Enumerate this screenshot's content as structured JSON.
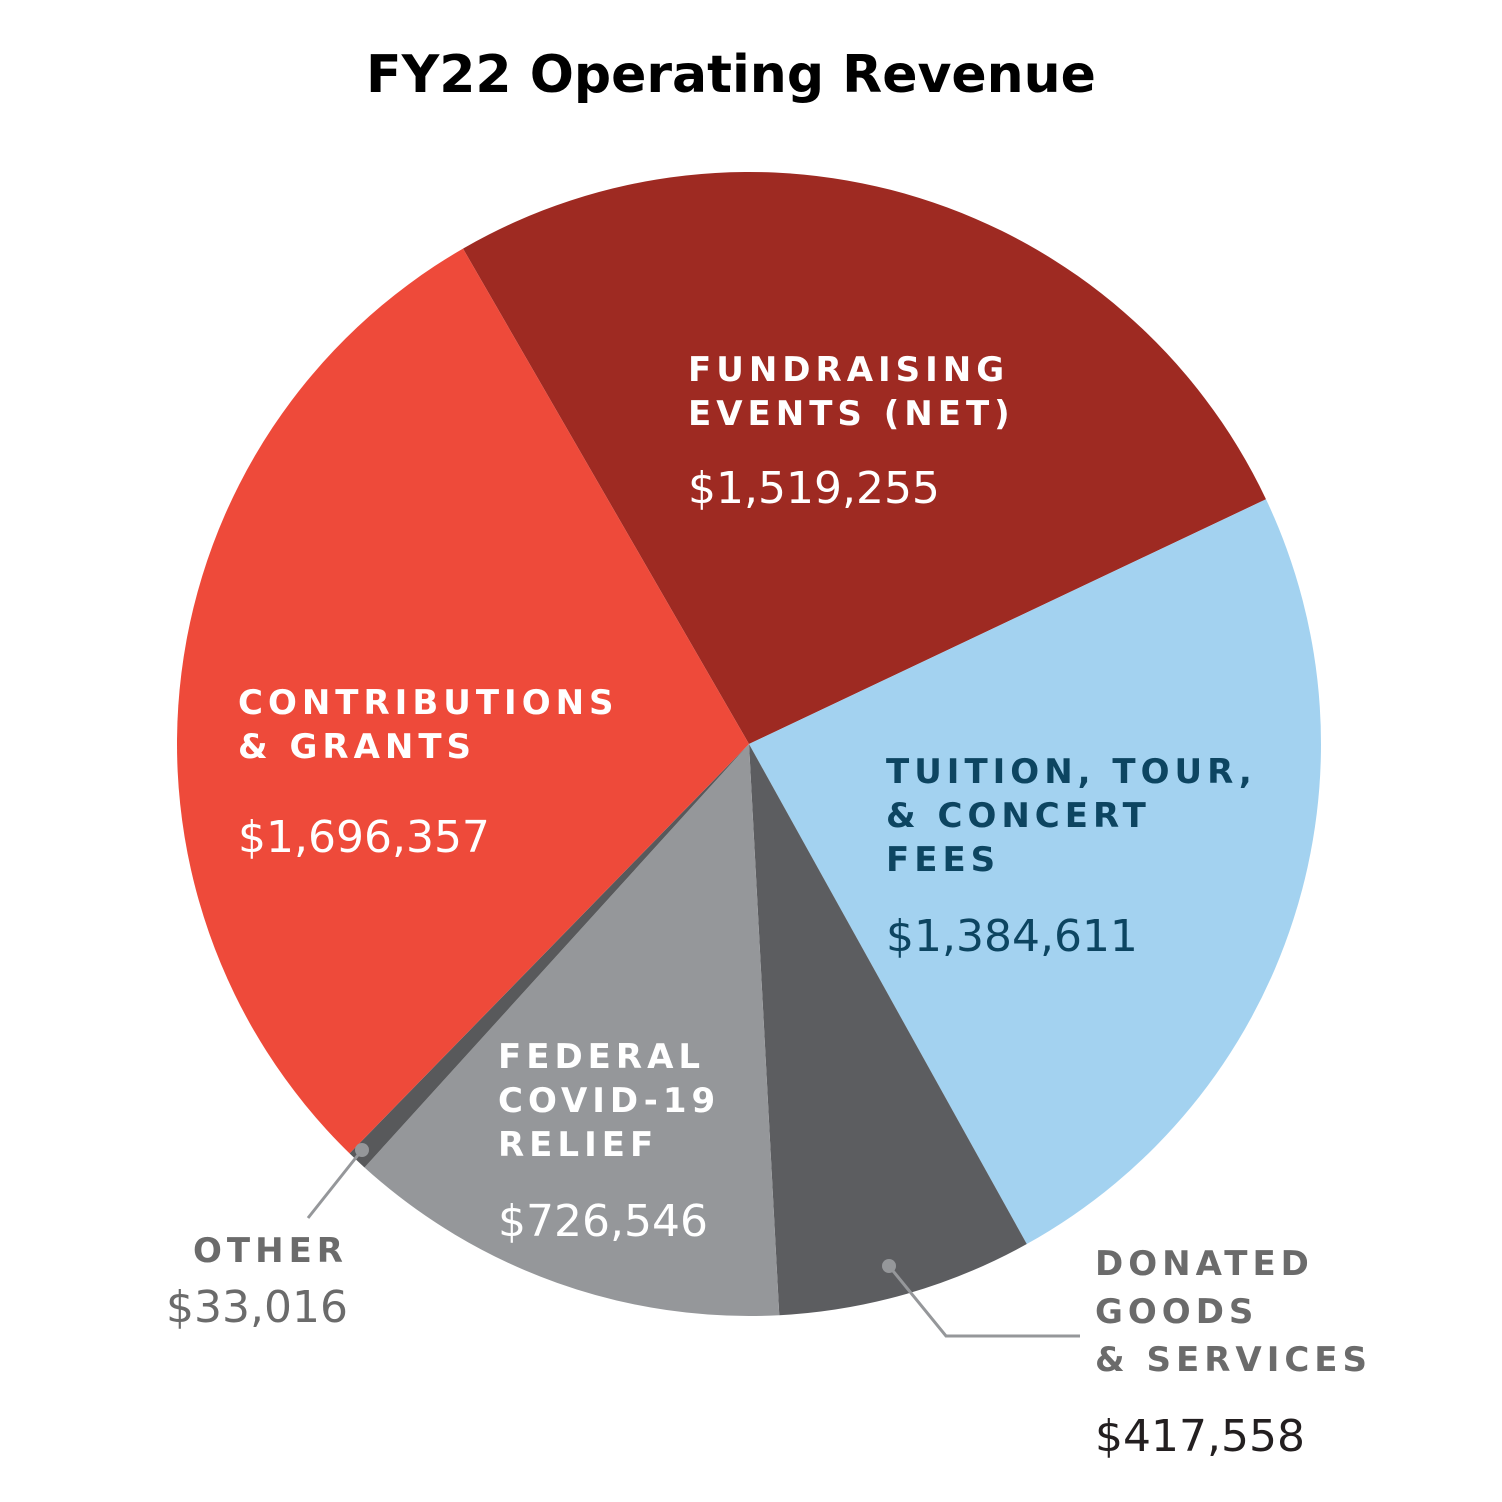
{
  "chart_data": {
    "type": "pie",
    "title": "FY22 Operating Revenue",
    "slices": [
      {
        "label_lines": [
          "FUNDRAISING",
          "EVENTS (NET)"
        ],
        "value": 1519255,
        "value_label": "$1,519,255",
        "color": "#9e2a22",
        "text_color": "#ffffff"
      },
      {
        "label_lines": [
          "TUITION, TOUR,",
          "& CONCERT",
          "FEES"
        ],
        "value": 1384611,
        "value_label": "$1,384,611",
        "color": "#a3d2f0",
        "text_color": "#0d4561"
      },
      {
        "label_lines": [
          "DONATED",
          "GOODS",
          "& SERVICES"
        ],
        "value": 417558,
        "value_label": "$417,558",
        "color": "#5c5d60",
        "text_color": "#6b6b6b",
        "value_color": "#231f20"
      },
      {
        "label_lines": [
          "FEDERAL",
          "COVID-19",
          "RELIEF"
        ],
        "value": 726546,
        "value_label": "$726,546",
        "color": "#95979a",
        "text_color": "#ffffff"
      },
      {
        "label_lines": [
          "OTHER"
        ],
        "value": 33016,
        "value_label": "$33,016",
        "color": "#58595b",
        "text_color": "#6b6b6b"
      },
      {
        "label_lines": [
          "CONTRIBUTIONS",
          "& GRANTS"
        ],
        "value": 1696357,
        "value_label": "$1,696,357",
        "color": "#ee4a3a",
        "text_color": "#ffffff"
      }
    ]
  }
}
